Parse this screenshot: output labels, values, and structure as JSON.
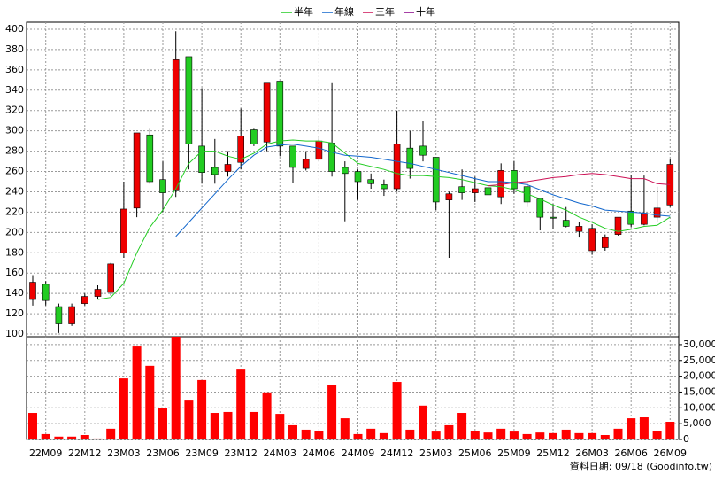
{
  "chart_data": {
    "type": "candlestick",
    "categories": [
      null,
      "22M09",
      null,
      null,
      "22M12",
      null,
      null,
      "23M03",
      null,
      null,
      "23M06",
      null,
      null,
      "23M09",
      null,
      null,
      "23M12",
      null,
      null,
      "24M03",
      null,
      null,
      "24M06",
      null,
      null,
      "24M09",
      null,
      null,
      "24M12",
      null,
      null,
      "25M03",
      null,
      null,
      "25M06",
      null,
      null,
      "25M09",
      null,
      null,
      "25M12",
      null,
      null,
      "26M03",
      null,
      null,
      "26M06",
      null,
      null,
      "26M09"
    ],
    "open": [
      134,
      149,
      127,
      110,
      130,
      137,
      141,
      180,
      224,
      296,
      252,
      241,
      373,
      285,
      264,
      260,
      269,
      301,
      289,
      349,
      285,
      263,
      272,
      288,
      264,
      260,
      252,
      247,
      243,
      283,
      285,
      274,
      232,
      245,
      239,
      244,
      235,
      261,
      245,
      233,
      215,
      212,
      201,
      182,
      185,
      198,
      221,
      208,
      215,
      227
    ],
    "high": [
      158,
      152,
      130,
      130,
      140,
      148,
      170,
      250,
      298,
      302,
      270,
      398,
      373,
      342,
      292,
      280,
      322,
      302,
      347,
      349,
      285,
      280,
      295,
      347,
      270,
      262,
      258,
      252,
      320,
      300,
      310,
      274,
      240,
      262,
      255,
      250,
      268,
      270,
      250,
      234,
      228,
      225,
      210,
      208,
      198,
      215,
      256,
      256,
      245,
      272
    ],
    "low": [
      128,
      128,
      101,
      108,
      128,
      134,
      138,
      175,
      215,
      248,
      220,
      235,
      262,
      248,
      248,
      255,
      262,
      285,
      280,
      275,
      249,
      261,
      270,
      255,
      211,
      232,
      243,
      236,
      240,
      253,
      270,
      222,
      175,
      232,
      230,
      230,
      228,
      238,
      225,
      202,
      203,
      205,
      195,
      178,
      182,
      197,
      205,
      207,
      210,
      225
    ],
    "close": [
      151,
      133,
      110,
      127,
      137,
      144,
      169,
      223,
      298,
      250,
      239,
      370,
      287,
      259,
      257,
      267,
      295,
      287,
      347,
      285,
      264,
      272,
      290,
      260,
      258,
      250,
      248,
      243,
      287,
      263,
      276,
      230,
      238,
      239,
      243,
      237,
      261,
      243,
      230,
      215,
      214,
      206,
      206,
      204,
      195,
      215,
      208,
      219,
      224,
      267
    ],
    "up_color": "#ee0000",
    "down_color": "#22cc22",
    "ylim": [
      100,
      400
    ],
    "yticks": [
      100,
      120,
      140,
      160,
      180,
      200,
      220,
      240,
      260,
      280,
      300,
      320,
      340,
      360,
      380,
      400
    ],
    "series": [
      {
        "name": "半年",
        "color": "#22cc22",
        "values": [
          null,
          null,
          null,
          null,
          null,
          134,
          136,
          150,
          180,
          205,
          222,
          243,
          268,
          280,
          280,
          275,
          272,
          278,
          287,
          290,
          291,
          290,
          290,
          288,
          278,
          268,
          265,
          262,
          258,
          256,
          256,
          255,
          254,
          252,
          249,
          246,
          245,
          242,
          238,
          233,
          227,
          222,
          215,
          210,
          204,
          201,
          203,
          206,
          207,
          215
        ]
      },
      {
        "name": "年線",
        "color": "#1166cc",
        "values": [
          null,
          null,
          null,
          null,
          null,
          null,
          null,
          null,
          null,
          null,
          null,
          196,
          210,
          224,
          238,
          252,
          265,
          276,
          284,
          286,
          287,
          285,
          283,
          279,
          276,
          275,
          274,
          272,
          270,
          268,
          265,
          262,
          259,
          256,
          253,
          250,
          250,
          249,
          247,
          242,
          237,
          233,
          229,
          226,
          222,
          221,
          220,
          219,
          217,
          216
        ]
      },
      {
        "name": "三年",
        "color": "#cc1155",
        "values": [
          null,
          null,
          null,
          null,
          null,
          null,
          null,
          null,
          null,
          null,
          null,
          null,
          null,
          null,
          null,
          null,
          null,
          null,
          null,
          null,
          null,
          null,
          null,
          null,
          null,
          null,
          null,
          null,
          null,
          null,
          null,
          null,
          null,
          null,
          null,
          246,
          247,
          249,
          250,
          252,
          254,
          255,
          257,
          258,
          257,
          255,
          253,
          253,
          248,
          247
        ]
      },
      {
        "name": "十年",
        "color": "#880088",
        "values": [
          null,
          null,
          null,
          null,
          null,
          null,
          null,
          null,
          null,
          null,
          null,
          null,
          null,
          null,
          null,
          null,
          null,
          null,
          null,
          null,
          null,
          null,
          null,
          null,
          null,
          null,
          null,
          null,
          null,
          null,
          null,
          null,
          null,
          null,
          null,
          null,
          null,
          null,
          null,
          null,
          null,
          null,
          null,
          null,
          null,
          null,
          null,
          null,
          null,
          null
        ]
      }
    ],
    "volume": {
      "color": "#ff0000",
      "values": [
        8400,
        1700,
        900,
        900,
        1400,
        300,
        3400,
        19300,
        29400,
        23300,
        9800,
        32500,
        12300,
        18800,
        8400,
        8700,
        22100,
        8700,
        14900,
        8100,
        4500,
        3100,
        2800,
        17100,
        6700,
        1700,
        3400,
        2000,
        18200,
        3100,
        10700,
        2500,
        4500,
        8400,
        2800,
        2200,
        3400,
        2500,
        1700,
        2200,
        2000,
        3100,
        2000,
        2000,
        1400,
        3400,
        6700,
        7000,
        2800,
        5600
      ],
      "ylim": [
        0,
        32500
      ],
      "yticks": [
        0,
        {
          "value": 5000,
          "label": "5,000"
        },
        {
          "value": 10000,
          "label": "10,000"
        },
        {
          "value": 15000,
          "label": "15,000"
        },
        {
          "value": 20000,
          "label": "20,000"
        },
        {
          "value": 25000,
          "label": "25,000"
        },
        {
          "value": 30000,
          "label": "30,000"
        }
      ]
    },
    "grid": true,
    "legend": "top",
    "footnote": "資料日期: 09/18  (Goodinfo.tw)"
  }
}
